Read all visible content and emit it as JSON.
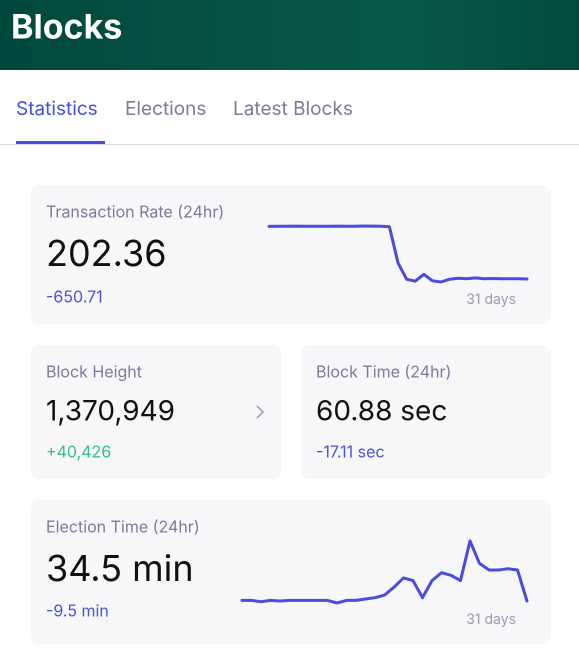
{
  "header": {
    "title": "Blocks"
  },
  "tabs": [
    "Statistics",
    "Elections",
    "Latest Blocks"
  ],
  "cards": [
    {
      "label": "Transaction Rate (24hr)",
      "value": "202.36",
      "change": "-650.71",
      "sparkline": {
        "period": "31 days",
        "values": [
          848,
          850,
          851,
          852,
          850,
          851,
          849,
          850,
          852,
          851,
          850,
          853,
          852,
          851,
          845,
          400,
          200,
          175,
          260,
          180,
          165,
          200,
          210,
          205,
          215,
          205,
          208,
          205,
          206,
          205,
          202
        ]
      }
    },
    {
      "label": "Block Height",
      "value": "1,370,949",
      "change": "+40,426"
    },
    {
      "label": "Block Time (24hr)",
      "value": "60.88 sec",
      "change": "-17.11 sec"
    },
    {
      "label": "Election Time (24hr)",
      "value": "34.5 min",
      "change": "-9.5 min",
      "sparkline": {
        "period": "31 days",
        "values": [
          35,
          35,
          34,
          35,
          34.5,
          35,
          35,
          35,
          35,
          35,
          33,
          35,
          35,
          36,
          37,
          39,
          45,
          52,
          50,
          37,
          50,
          56,
          54,
          50,
          80,
          63,
          58,
          58,
          59,
          58,
          34.5
        ]
      }
    }
  ]
}
